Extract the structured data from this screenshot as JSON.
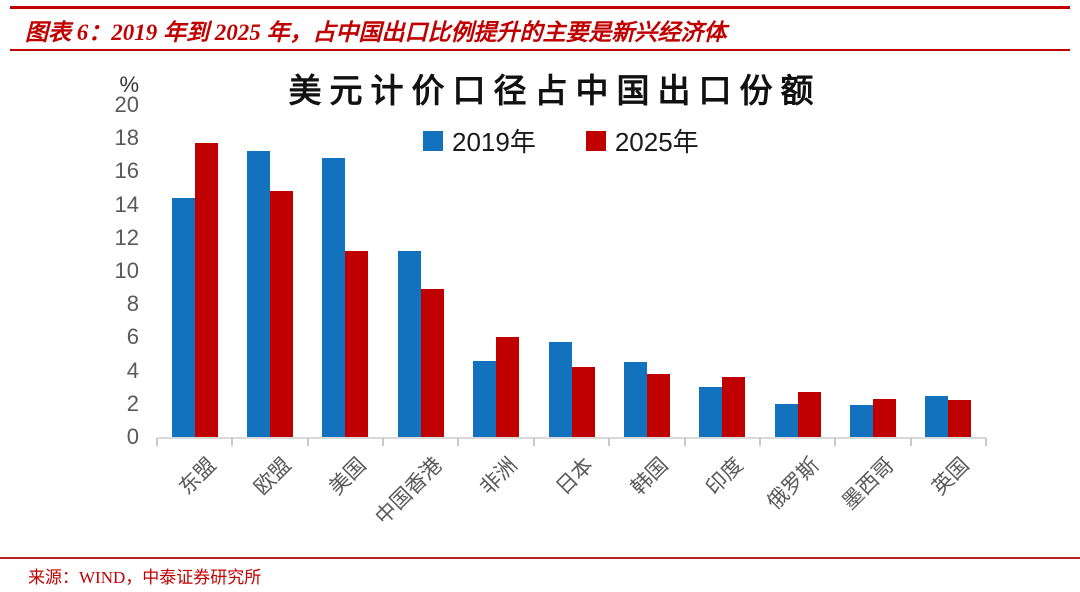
{
  "header": {
    "title": "图表 6：2019 年到 2025 年，占中国出口比例提升的主要是新兴经济体"
  },
  "chart_data": {
    "type": "bar",
    "title": "美元计价口径占中国出口份额",
    "unit_label": "%",
    "xlabel": "",
    "ylabel": "%",
    "categories": [
      "东盟",
      "欧盟",
      "美国",
      "中国香港",
      "非洲",
      "日本",
      "韩国",
      "印度",
      "俄罗斯",
      "墨西哥",
      "英国"
    ],
    "series": [
      {
        "name": "2019年",
        "color": "#1272BE",
        "values": [
          14.4,
          17.2,
          16.8,
          11.2,
          4.6,
          5.7,
          4.5,
          3.0,
          2.0,
          1.9,
          2.5
        ]
      },
      {
        "name": "2025年",
        "color": "#C00000",
        "values": [
          17.7,
          14.8,
          11.2,
          8.9,
          6.0,
          4.2,
          3.8,
          3.6,
          2.7,
          2.3,
          2.2
        ]
      }
    ],
    "ylim": [
      0,
      20
    ],
    "ytick_step": 2,
    "grid": false,
    "legend_position": "top-center"
  },
  "footer": {
    "source": "来源：WIND，中泰证券研究所"
  },
  "colors": {
    "accent": "#C00000",
    "bar_blue": "#1272BE",
    "bar_red": "#C00000",
    "axis_text": "#595959",
    "axis_line": "#D9D9D9"
  }
}
